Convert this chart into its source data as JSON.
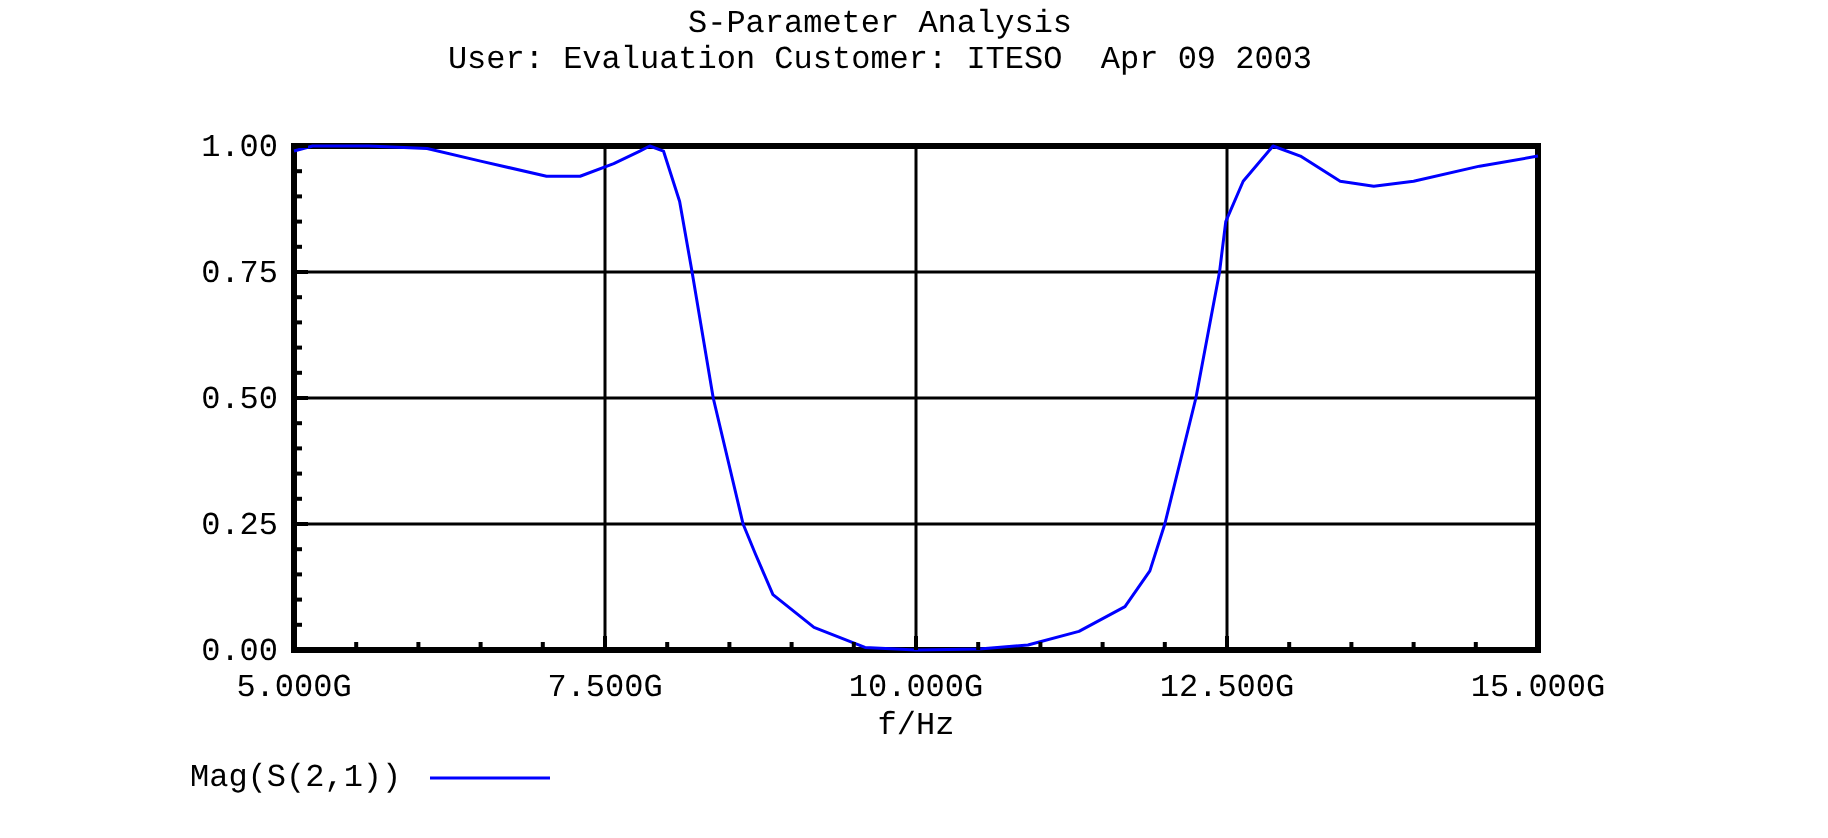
{
  "chart_data": {
    "type": "line",
    "title": "S-Parameter Analysis",
    "subtitle": "User: Evaluation Customer: ITESO  Apr 09 2003",
    "xlabel": "f/Hz",
    "xlim": [
      5,
      15
    ],
    "xticks": [
      {
        "value": 5,
        "label": "5.000G"
      },
      {
        "value": 5.5,
        "label": null
      },
      {
        "value": 6,
        "label": null
      },
      {
        "value": 6.5,
        "label": null
      },
      {
        "value": 7,
        "label": null
      },
      {
        "value": 7.5,
        "label": "7.500G"
      },
      {
        "value": 8,
        "label": null
      },
      {
        "value": 8.5,
        "label": null
      },
      {
        "value": 9,
        "label": null
      },
      {
        "value": 9.5,
        "label": null
      },
      {
        "value": 10,
        "label": "10.000G"
      },
      {
        "value": 10.5,
        "label": null
      },
      {
        "value": 11,
        "label": null
      },
      {
        "value": 11.5,
        "label": null
      },
      {
        "value": 12,
        "label": null
      },
      {
        "value": 12.5,
        "label": "12.500G"
      },
      {
        "value": 13,
        "label": null
      },
      {
        "value": 13.5,
        "label": null
      },
      {
        "value": 14,
        "label": null
      },
      {
        "value": 14.5,
        "label": null
      },
      {
        "value": 15,
        "label": "15.000G"
      }
    ],
    "ylim": [
      0,
      1
    ],
    "yticks": [
      {
        "value": 0,
        "label": "0.00"
      },
      {
        "value": 0.05,
        "label": null
      },
      {
        "value": 0.1,
        "label": null
      },
      {
        "value": 0.15,
        "label": null
      },
      {
        "value": 0.2,
        "label": null
      },
      {
        "value": 0.25,
        "label": "0.25"
      },
      {
        "value": 0.3,
        "label": null
      },
      {
        "value": 0.35,
        "label": null
      },
      {
        "value": 0.4,
        "label": null
      },
      {
        "value": 0.45,
        "label": null
      },
      {
        "value": 0.5,
        "label": "0.50"
      },
      {
        "value": 0.55,
        "label": null
      },
      {
        "value": 0.6,
        "label": null
      },
      {
        "value": 0.65,
        "label": null
      },
      {
        "value": 0.7,
        "label": null
      },
      {
        "value": 0.75,
        "label": "0.75"
      },
      {
        "value": 0.8,
        "label": null
      },
      {
        "value": 0.85,
        "label": null
      },
      {
        "value": 0.9,
        "label": null
      },
      {
        "value": 0.95,
        "label": null
      },
      {
        "value": 1,
        "label": "1.00"
      }
    ],
    "grid": true,
    "legend": "bottom left",
    "marker": "none",
    "line_style": "solid",
    "series": [
      {
        "name": "Mag(S(2,1))",
        "color": "#0000ff",
        "x": [
          5.0,
          5.15,
          5.6,
          6.07,
          6.5,
          7.03,
          7.3,
          7.57,
          7.78,
          7.86,
          7.97,
          8.1,
          8.2,
          8.37,
          8.61,
          8.71,
          8.85,
          9.18,
          9.59,
          10.0,
          10.51,
          10.9,
          11.31,
          11.68,
          11.88,
          12.0,
          12.25,
          12.44,
          12.49,
          12.63,
          12.87,
          13.09,
          13.41,
          13.68,
          14.0,
          14.53,
          15.0
        ],
        "values": [
          0.99,
          1.0,
          1.0,
          0.995,
          0.97,
          0.94,
          0.94,
          0.965,
          0.99,
          1.0,
          0.99,
          0.89,
          0.75,
          0.5,
          0.25,
          0.19,
          0.11,
          0.045,
          0.005,
          0.0,
          0.002,
          0.01,
          0.037,
          0.086,
          0.157,
          0.25,
          0.5,
          0.75,
          0.85,
          0.93,
          1.0,
          0.98,
          0.93,
          0.92,
          0.93,
          0.96,
          0.98
        ]
      }
    ]
  }
}
